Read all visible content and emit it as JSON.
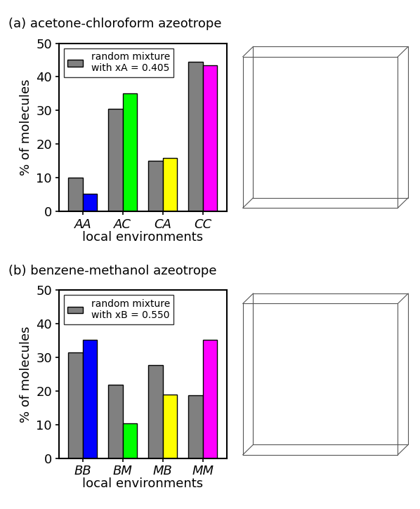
{
  "chart_data": [
    {
      "type": "bar",
      "title": "(a) acetone-chloroform azeotrope",
      "categories": [
        "AA",
        "AC",
        "CA",
        "CC"
      ],
      "series": [
        {
          "name": "random mixture\nwith xA = 0.405",
          "color": "#808080",
          "values": [
            10.0,
            30.5,
            15.0,
            44.5
          ]
        },
        {
          "colors": [
            "#0000ff",
            "#00ff00",
            "#ffff00",
            "#ff00ff"
          ],
          "values": [
            5.3,
            35.0,
            15.8,
            43.5
          ]
        }
      ],
      "x_label": "local environments",
      "y_label": "% of molecules",
      "ylim": [
        0,
        50
      ],
      "yticks": [
        0,
        10,
        20,
        30,
        40,
        50
      ],
      "legend": "upper left"
    },
    {
      "type": "bar",
      "title": "(b) benzene-methanol azeotrope",
      "categories": [
        "BB",
        "BM",
        "MB",
        "MM"
      ],
      "series": [
        {
          "name": "random mixture\nwith xB = 0.550",
          "color": "#808080",
          "values": [
            31.5,
            21.8,
            27.6,
            18.8
          ]
        },
        {
          "colors": [
            "#0000ff",
            "#00ff00",
            "#ffff00",
            "#ff00ff"
          ],
          "values": [
            35.3,
            10.3,
            18.9,
            35.2
          ]
        }
      ],
      "x_label": "local environments",
      "y_label": "% of molecules",
      "ylim": [
        0,
        50
      ],
      "yticks": [
        0,
        10,
        20,
        30,
        40,
        50
      ],
      "legend": "upper left"
    }
  ]
}
